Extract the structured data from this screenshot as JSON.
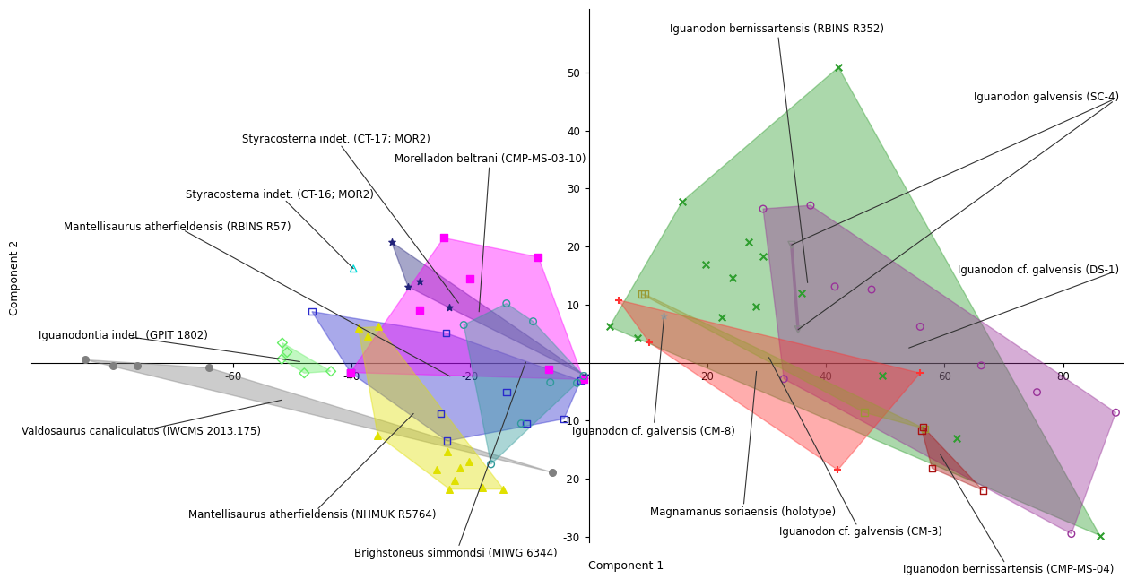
{
  "chart_data": {
    "type": "scatter",
    "xlabel": "Component 1",
    "ylabel": "Component 2",
    "xlim": [
      -94,
      90
    ],
    "ylim": [
      -31,
      61
    ],
    "xticks": [
      -60,
      -40,
      -20,
      20,
      40,
      60,
      80
    ],
    "yticks": [
      -30,
      -20,
      -10,
      10,
      20,
      30,
      40,
      50
    ],
    "series": [
      {
        "name": "Valdosaurus canaliculatus (IWCMS 2013.175)",
        "color": "#808080",
        "marker": "filled circle",
        "x": [
          -85,
          -80.3,
          -76.2,
          -64.1,
          -6.2
        ],
        "y": [
          0.5,
          -0.5,
          -0.5,
          -0.9,
          -18.9
        ]
      },
      {
        "name": "Iguanodontia indet. (GPIT 1802)",
        "color": "#66ee66",
        "marker": "open diamond",
        "x": [
          -51.7,
          -51.8,
          -48,
          -43.5,
          -50.9
        ],
        "y": [
          3.4,
          0.6,
          -1.8,
          -1.5,
          1.8
        ]
      },
      {
        "name": "Mantellisaurus atherfieldensis (RBINS R57)",
        "color": "#2a2acc",
        "marker": "open square",
        "x": [
          -46.7,
          -24.1,
          -40.2,
          -13.9,
          -4.2,
          -25,
          -23.9,
          -10.5,
          -1.4
        ],
        "y": [
          8.8,
          5.1,
          -1.7,
          -5.1,
          -9.7,
          -8.8,
          -13.5,
          -10.5,
          -3.1
        ]
      },
      {
        "name": "Styracosterna indet. (CT-16; MOR2)",
        "color": "#00d8d8",
        "marker": "open triangle",
        "x": [
          -39.7
        ],
        "y": [
          16.2
        ]
      },
      {
        "name": "Styracosterna indet. (CT-17; MOR2)",
        "color": "#22227a",
        "marker": "asterisk",
        "x": [
          -33.3,
          -28.5,
          -30.5,
          -23.6,
          -0.5
        ],
        "y": [
          20.8,
          14,
          13.1,
          9.5,
          -2.3
        ]
      },
      {
        "name": "Morelladon beltrani (CMP-MS-03-10)",
        "color": "#ff00ff",
        "marker": "filled square",
        "x": [
          -24.5,
          -8.5,
          -20,
          -28.5,
          -40.2,
          -6.7,
          -0.9
        ],
        "y": [
          21.5,
          18.2,
          14.5,
          9.1,
          -1.7,
          -1.1,
          -2.9
        ]
      },
      {
        "name": "Brighstoneus simmondsi (MIWG 6344)",
        "color": "#2f9a9a",
        "marker": "open circle",
        "x": [
          -13.9,
          -9.4,
          -21.1,
          -6.5,
          -11.4,
          -16.5,
          -0.9,
          -2
        ],
        "y": [
          10.2,
          7.1,
          6.5,
          -3.4,
          -10.5,
          -17.5,
          -2.3,
          -3.5
        ]
      },
      {
        "name": "Mantellisaurus atherfieldensis (NHMUK R5764)",
        "color": "#e0e000",
        "marker": "filled triangle",
        "x": [
          -38.9,
          -35.5,
          -37.3,
          -35.6,
          -23.9,
          -23.5,
          -20.2,
          -21.7,
          -22.7,
          -17.9,
          -14.4,
          -25.6
        ],
        "y": [
          6,
          6.2,
          4.6,
          -12.5,
          -15.4,
          -21.8,
          -17.1,
          -18.2,
          -20.3,
          -21.5,
          -21.8,
          -18.5
        ]
      },
      {
        "name": "Iguanodon bernissartensis (RBINS R352)",
        "color": "#2e9e2e",
        "marker": "cross",
        "x": [
          42.1,
          15.8,
          27,
          24.2,
          19.7,
          29.4,
          28.2,
          35.9,
          22.4,
          8.2,
          3.5,
          49.5,
          62.1,
          86.2
        ],
        "y": [
          50.9,
          27.8,
          20.8,
          14.6,
          16.9,
          18.3,
          9.7,
          12,
          7.8,
          4.3,
          6.2,
          -2.3,
          -13.1,
          -29.8
        ]
      },
      {
        "name": "Iguanodon galvensis (SC-4)",
        "color": "#888888",
        "marker": "open down triangle",
        "x": [
          34.2,
          35.3
        ],
        "y": [
          20.3,
          5.7
        ]
      },
      {
        "name": "Iguanodon cf. galvensis (DS-1)",
        "color": "#993399",
        "marker": "open circle",
        "x": [
          29.4,
          37.4,
          41.5,
          47.7,
          55.9,
          66.2,
          75.6,
          88.9,
          81.4,
          32.9
        ],
        "y": [
          26.5,
          27.1,
          13.1,
          12.6,
          6.2,
          -0.5,
          -5.1,
          -8.6,
          -29.5,
          -2.8
        ]
      },
      {
        "name": "Magnamanus soriaensis (holotype)",
        "color": "#ff3333",
        "marker": "plus",
        "x": [
          5,
          10.2,
          42,
          55.9
        ],
        "y": [
          10.8,
          3.5,
          -18.5,
          -1.8
        ]
      },
      {
        "name": "Iguanodon cf. galvensis (CM-8)",
        "color": "#999999",
        "marker": "open star",
        "x": [
          12.7
        ],
        "y": [
          8
        ]
      },
      {
        "name": "Iguanodon cf. galvensis (CM-3)",
        "color": "#999933",
        "marker": "open square",
        "x": [
          8.9,
          9.4,
          46.5,
          56.7
        ],
        "y": [
          11.8,
          11.8,
          -8.6,
          -11.4
        ]
      },
      {
        "name": "Iguanodon bernissartensis (CMP-MS-04)",
        "color": "#aa1111",
        "marker": "open square",
        "x": [
          56.4,
          57.9,
          66.5,
          56.2
        ],
        "y": [
          -11.1,
          -18.2,
          -22,
          -11.7
        ]
      }
    ]
  }
}
